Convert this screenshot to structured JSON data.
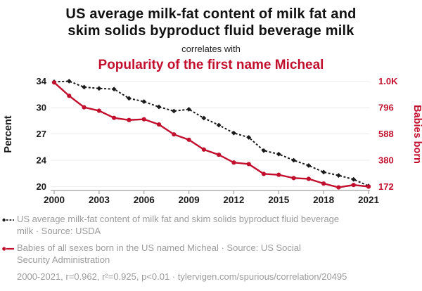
{
  "header": {
    "title_lines": [
      "US average milk-fat content of milk fat and",
      "skim solids byproduct fluid beverage milk"
    ],
    "connector": "correlates with",
    "subtitle": "Popularity of the first name Micheal"
  },
  "chart_data": {
    "type": "line",
    "x": [
      2000,
      2001,
      2002,
      2003,
      2004,
      2005,
      2006,
      2007,
      2008,
      2009,
      2010,
      2011,
      2012,
      2013,
      2014,
      2015,
      2016,
      2017,
      2018,
      2019,
      2020,
      2021
    ],
    "x_ticks": [
      2000,
      2003,
      2006,
      2009,
      2012,
      2015,
      2018,
      2021
    ],
    "series": [
      {
        "name": "US average milk-fat content of milk fat and skim solids byproduct fluid beverage milk",
        "axis": "left",
        "style": "dashed-diamond",
        "color": "#1a1a1a",
        "values": [
          33.9,
          34.0,
          33.1,
          32.9,
          32.8,
          31.4,
          30.9,
          30.1,
          29.6,
          29.8,
          28.8,
          28.0,
          27.1,
          26.6,
          25.1,
          24.7,
          24.0,
          23.2,
          22.2,
          21.7,
          21.1,
          20.1
        ]
      },
      {
        "name": "Babies of all sexes born in the US named Micheal",
        "axis": "right",
        "style": "solid-circle",
        "color": "#c10f2d",
        "values": [
          990,
          885,
          795,
          768,
          712,
          695,
          701,
          660,
          582,
          540,
          463,
          422,
          361,
          349,
          272,
          265,
          239,
          233,
          196,
          166,
          185,
          172
        ]
      }
    ],
    "left_axis": {
      "label": "Percent",
      "tick_values": [
        34,
        30,
        27,
        24,
        20
      ],
      "tick_labels": [
        "34",
        "30",
        "27",
        "24",
        "20"
      ]
    },
    "right_axis": {
      "label": "Babies born",
      "tick_values": [
        1000,
        796,
        588,
        380,
        172
      ],
      "tick_labels": [
        "1.0K",
        "796",
        "588",
        "380",
        "172"
      ],
      "min": 172,
      "max": 1000
    },
    "grid": true,
    "legend_position": "bottom",
    "x_range": [
      2000,
      2021
    ]
  },
  "legend": {
    "items": [
      {
        "marker": "black-dashed-diamond",
        "lines": [
          "US average milk-fat content of milk fat and skim solids byproduct fluid beverage",
          "milk · Source: USDA"
        ]
      },
      {
        "marker": "red-solid-circle",
        "lines": [
          "Babies of all sexes born in the US named Micheal · Source: US Social",
          "Security Administration"
        ]
      }
    ]
  },
  "footer": {
    "text": "2000-2021, r=0.962, r²=0.925, p<0.01 · tylervigen.com/spurious/correlation/20495"
  },
  "colors": {
    "accent_red": "#c10f2d",
    "series_black": "#1a1a1a",
    "legend_gray": "#9b9b9b",
    "grid": "#ededed",
    "axis": "#a0a0a0"
  }
}
